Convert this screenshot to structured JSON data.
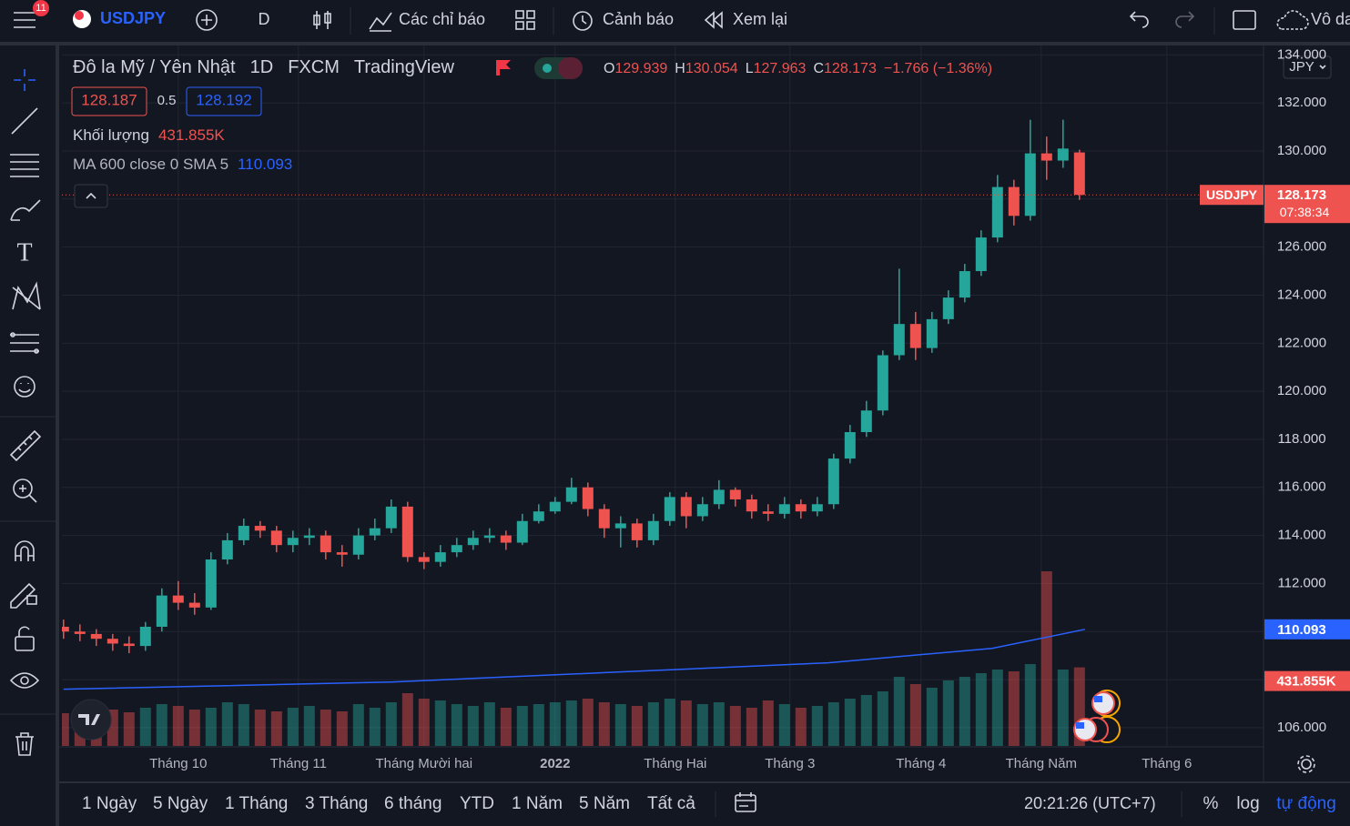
{
  "toolbar": {
    "badge": "11",
    "symbol": "USDJPY",
    "interval": "D",
    "indicators": "Các chỉ báo",
    "alerts": "Cảnh báo",
    "replay": "Xem lại",
    "layout": "Vô da"
  },
  "chart_data": {
    "type": "candlestick",
    "legend": {
      "title": "Đô la Mỹ / Yên Nhật",
      "interval": "1D",
      "exchange": "FXCM",
      "source": "TradingView"
    },
    "ohlc_labels": [
      "O",
      "H",
      "L",
      "C"
    ],
    "change": "−1.766 (−1.36%)",
    "bid": "128.187",
    "spread": "0.5",
    "ask": "128.192",
    "volume_name": "Khối lượng",
    "volume_label": "431.855K",
    "symbol_tag": "USDJPY",
    "countdown": "07:38:34",
    "currency": "JPY",
    "up_color": "#26a69a",
    "down_color": "#ef5350",
    "x": [
      0,
      3,
      6,
      9,
      12,
      15,
      18,
      21,
      24,
      27,
      30,
      33,
      36,
      39,
      42,
      45,
      48,
      51,
      54,
      57,
      60,
      63,
      66,
      69,
      72,
      75,
      78,
      81,
      84,
      87,
      90,
      93,
      96,
      99,
      102,
      105,
      108,
      111,
      114,
      117,
      120,
      123,
      126,
      129,
      132,
      135,
      138,
      141,
      144,
      147,
      150,
      153,
      156,
      159,
      162,
      165,
      168,
      171,
      174,
      177,
      180,
      183,
      186
    ],
    "open": [
      110.2,
      110.0,
      109.9,
      109.7,
      109.5,
      109.4,
      110.2,
      111.5,
      111.2,
      111.0,
      113.0,
      113.8,
      114.4,
      114.2,
      113.6,
      113.9,
      114.0,
      113.3,
      113.2,
      114.0,
      114.3,
      115.2,
      113.1,
      112.9,
      113.3,
      113.6,
      113.9,
      114.0,
      113.7,
      114.6,
      115.0,
      115.4,
      116.0,
      115.1,
      114.3,
      114.5,
      113.8,
      114.6,
      115.6,
      114.8,
      115.3,
      115.9,
      115.5,
      115.0,
      114.9,
      115.3,
      115.0,
      115.3,
      117.2,
      118.3,
      119.2,
      121.5,
      122.8,
      121.8,
      123.0,
      123.9,
      125.0,
      126.4,
      128.5,
      127.3,
      129.9,
      129.6,
      129.939
    ],
    "high": [
      110.5,
      110.3,
      110.1,
      109.9,
      109.8,
      110.4,
      111.8,
      112.1,
      111.6,
      113.3,
      114.1,
      114.7,
      114.6,
      114.4,
      114.2,
      114.3,
      114.2,
      113.6,
      114.3,
      114.7,
      115.5,
      115.4,
      113.3,
      113.6,
      113.9,
      114.2,
      114.3,
      114.2,
      114.9,
      115.3,
      115.6,
      116.4,
      116.2,
      115.3,
      114.8,
      114.7,
      114.9,
      115.8,
      115.8,
      115.6,
      116.3,
      116.0,
      115.7,
      115.3,
      115.6,
      115.5,
      115.6,
      117.4,
      118.6,
      119.6,
      121.7,
      125.1,
      123.3,
      123.3,
      124.2,
      125.3,
      126.7,
      129.0,
      128.8,
      131.3,
      130.6,
      131.3,
      130.054
    ],
    "low": [
      109.7,
      109.6,
      109.4,
      109.2,
      109.1,
      109.2,
      110.0,
      110.9,
      110.7,
      110.9,
      112.8,
      113.6,
      113.9,
      113.3,
      113.3,
      113.6,
      113.0,
      112.7,
      113.0,
      113.8,
      114.1,
      112.9,
      112.6,
      112.7,
      113.1,
      113.4,
      113.7,
      113.4,
      113.6,
      114.5,
      114.9,
      115.3,
      114.8,
      113.9,
      113.5,
      113.5,
      113.6,
      114.4,
      114.3,
      114.6,
      115.1,
      115.2,
      114.7,
      114.6,
      114.7,
      114.7,
      114.8,
      115.1,
      117.0,
      118.1,
      119.0,
      121.3,
      121.3,
      121.6,
      122.8,
      123.7,
      124.8,
      126.2,
      126.9,
      127.1,
      128.8,
      129.3,
      127.963
    ],
    "close": [
      110.0,
      109.9,
      109.7,
      109.5,
      109.4,
      110.2,
      111.5,
      111.2,
      111.0,
      113.0,
      113.8,
      114.4,
      114.2,
      113.6,
      113.9,
      114.0,
      113.3,
      113.2,
      114.0,
      114.3,
      115.2,
      113.1,
      112.9,
      113.3,
      113.6,
      113.9,
      114.0,
      113.7,
      114.6,
      115.0,
      115.4,
      116.0,
      115.1,
      114.3,
      114.5,
      113.8,
      114.6,
      115.6,
      114.8,
      115.3,
      115.9,
      115.5,
      115.0,
      114.9,
      115.3,
      115.0,
      115.3,
      117.2,
      118.3,
      119.2,
      121.5,
      122.8,
      121.8,
      123.0,
      123.9,
      125.0,
      126.4,
      128.5,
      127.3,
      129.9,
      129.6,
      130.1,
      128.173
    ],
    "volume": [
      180,
      190,
      170,
      200,
      185,
      210,
      230,
      220,
      200,
      210,
      240,
      230,
      200,
      190,
      210,
      220,
      200,
      190,
      230,
      210,
      240,
      290,
      260,
      250,
      230,
      220,
      240,
      210,
      220,
      230,
      240,
      250,
      260,
      240,
      230,
      220,
      240,
      260,
      250,
      230,
      240,
      220,
      210,
      250,
      230,
      210,
      220,
      240,
      260,
      280,
      300,
      380,
      340,
      320,
      360,
      380,
      400,
      420,
      410,
      450,
      960,
      420,
      431.855
    ],
    "volume_lim": [
      0,
      3850
    ],
    "ma": {
      "name": "MA 600 close 0 SMA 5",
      "color": "#2962ff",
      "x": [
        0,
        60,
        100,
        140,
        170,
        187
      ],
      "values": [
        107.6,
        107.9,
        108.3,
        108.7,
        109.3,
        110.093
      ]
    },
    "xlim": [
      -0.3,
      219.7
    ],
    "xticks": [
      {
        "value": 21,
        "label": "Tháng 10"
      },
      {
        "value": 43,
        "label": "Tháng 11"
      },
      {
        "value": 66,
        "label": "Tháng Mười hai"
      },
      {
        "value": 90,
        "label": "2022"
      },
      {
        "value": 112,
        "label": "Tháng Hai"
      },
      {
        "value": 133,
        "label": "Tháng 3"
      },
      {
        "value": 157,
        "label": "Tháng 4"
      },
      {
        "value": 179,
        "label": "Tháng Năm"
      },
      {
        "value": 202,
        "label": "Tháng 6"
      }
    ],
    "ylim": [
      105.24,
      134.39
    ],
    "yticks": [
      {
        "value": 106,
        "label": "106.000"
      },
      {
        "value": 108,
        "label": "108.000"
      },
      {
        "value": 110,
        "label": "110.000"
      },
      {
        "value": 112,
        "label": "112.000"
      },
      {
        "value": 114,
        "label": "114.000"
      },
      {
        "value": 116,
        "label": "116.000"
      },
      {
        "value": 118,
        "label": "118.000"
      },
      {
        "value": 120,
        "label": "120.000"
      },
      {
        "value": 122,
        "label": "122.000"
      },
      {
        "value": 124,
        "label": "124.000"
      },
      {
        "value": 126,
        "label": "126.000"
      },
      {
        "value": 128,
        "label": "128.000"
      },
      {
        "value": 130,
        "label": "130.000"
      },
      {
        "value": 132,
        "label": "132.000"
      },
      {
        "value": 134,
        "label": "134.000"
      }
    ],
    "grid": true
  },
  "bottom_bar": {
    "ranges": [
      "1 Ngày",
      "5 Ngày",
      "1 Tháng",
      "3 Tháng",
      "6 tháng",
      "YTD",
      "1 Năm",
      "5 Năm",
      "Tất cả"
    ],
    "clock": "20:21:26 (UTC+7)",
    "percent": "%",
    "log": "log",
    "auto": "tự động"
  }
}
